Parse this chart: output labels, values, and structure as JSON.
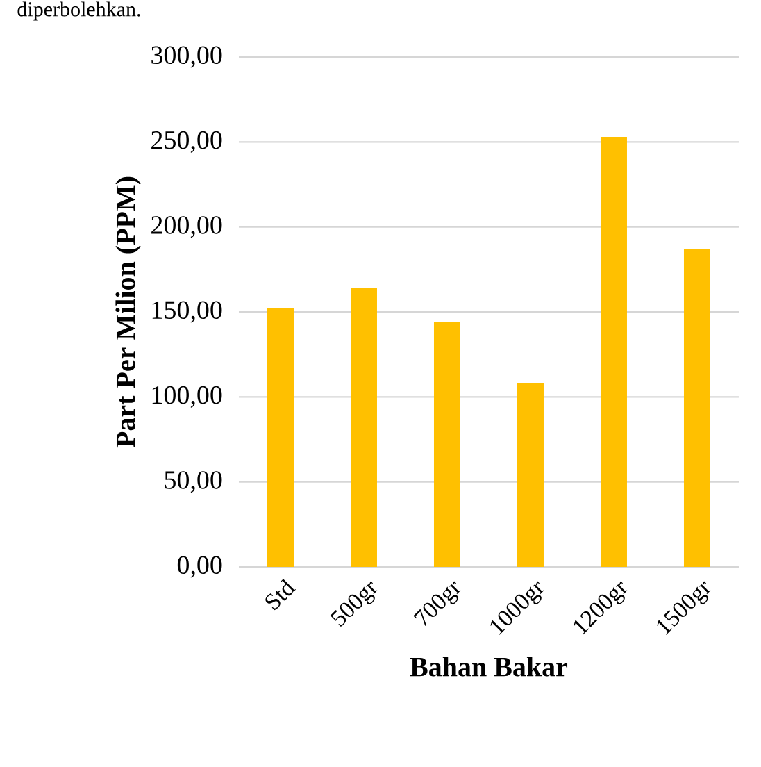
{
  "chart_data": {
    "type": "bar",
    "annotations": [
      "diperbolehkan."
    ],
    "xlabel": "Bahan Bakar",
    "ylabel": "Part Per Milion (PPM)",
    "categories": [
      "Std",
      "500gr",
      "700gr",
      "1000gr",
      "1200gr",
      "1500gr"
    ],
    "values": [
      152,
      164,
      144,
      108,
      253,
      187
    ],
    "color": "#ffc000",
    "ylim": [
      0,
      300
    ],
    "yticks": [
      {
        "value": 0,
        "label": "0,00"
      },
      {
        "value": 50,
        "label": "50,00"
      },
      {
        "value": 100,
        "label": "100,00"
      },
      {
        "value": 150,
        "label": "150,00"
      },
      {
        "value": 200,
        "label": "200,00"
      },
      {
        "value": 250,
        "label": "250,00"
      },
      {
        "value": 300,
        "label": "300,00"
      }
    ],
    "grid": "y"
  }
}
